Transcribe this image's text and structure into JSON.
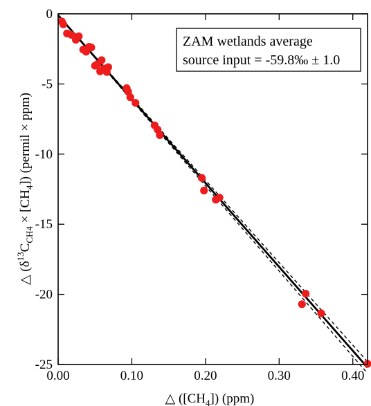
{
  "chart_data": {
    "type": "scatter",
    "xlabel": {
      "prefix": "△  ([CH",
      "sub": "4",
      "suffix": "])  (ppm)"
    },
    "ylabel": {
      "prefix": "△  (δ",
      "sup": "13",
      "c": "C",
      "sub1": "CH4",
      "mid": " × [CH",
      "sub2": "4",
      "suffix": "])  (permil × ppm)"
    },
    "xlim": [
      0,
      0.42
    ],
    "ylim": [
      -25,
      0
    ],
    "xticks": [
      {
        "value": 0.0,
        "label": "0.00"
      },
      {
        "value": 0.1,
        "label": "0.10"
      },
      {
        "value": 0.2,
        "label": "0.20"
      },
      {
        "value": 0.3,
        "label": "0.30"
      },
      {
        "value": 0.4,
        "label": "0.40"
      }
    ],
    "yticks": [
      {
        "value": 0,
        "label": "0"
      },
      {
        "value": -5,
        "label": "-5"
      },
      {
        "value": -10,
        "label": "-10"
      },
      {
        "value": -15,
        "label": "-15"
      },
      {
        "value": -20,
        "label": "-20"
      },
      {
        "value": -25,
        "label": "-25"
      }
    ],
    "annotation": {
      "line1": "ZAM wetlands average",
      "line2": "source input = -59.8‰ ± 1.0"
    },
    "marker_color": "#ee1c1c",
    "fit": {
      "slope": -59.8,
      "intercept": -0.1,
      "uncertainty": 1.0,
      "line_color": "#000000"
    },
    "points": [
      {
        "x": 0.005,
        "y": -0.55
      },
      {
        "x": 0.007,
        "y": -0.75
      },
      {
        "x": 0.012,
        "y": -1.4
      },
      {
        "x": 0.018,
        "y": -1.5
      },
      {
        "x": 0.024,
        "y": -1.85
      },
      {
        "x": 0.028,
        "y": -1.6
      },
      {
        "x": 0.034,
        "y": -2.55
      },
      {
        "x": 0.038,
        "y": -2.7
      },
      {
        "x": 0.042,
        "y": -2.35
      },
      {
        "x": 0.045,
        "y": -2.4
      },
      {
        "x": 0.05,
        "y": -3.7
      },
      {
        "x": 0.053,
        "y": -3.6
      },
      {
        "x": 0.057,
        "y": -4.1
      },
      {
        "x": 0.059,
        "y": -3.3
      },
      {
        "x": 0.062,
        "y": -3.9
      },
      {
        "x": 0.066,
        "y": -4.15
      },
      {
        "x": 0.068,
        "y": -3.8
      },
      {
        "x": 0.093,
        "y": -5.3
      },
      {
        "x": 0.095,
        "y": -5.55
      },
      {
        "x": 0.098,
        "y": -5.95
      },
      {
        "x": 0.105,
        "y": -6.35
      },
      {
        "x": 0.131,
        "y": -7.95
      },
      {
        "x": 0.135,
        "y": -8.25
      },
      {
        "x": 0.138,
        "y": -8.65
      },
      {
        "x": 0.195,
        "y": -11.7
      },
      {
        "x": 0.198,
        "y": -12.6
      },
      {
        "x": 0.214,
        "y": -13.25
      },
      {
        "x": 0.219,
        "y": -13.1
      },
      {
        "x": 0.331,
        "y": -20.7
      },
      {
        "x": 0.336,
        "y": -19.95
      },
      {
        "x": 0.357,
        "y": -21.35
      },
      {
        "x": 0.42,
        "y": -24.95
      }
    ]
  }
}
